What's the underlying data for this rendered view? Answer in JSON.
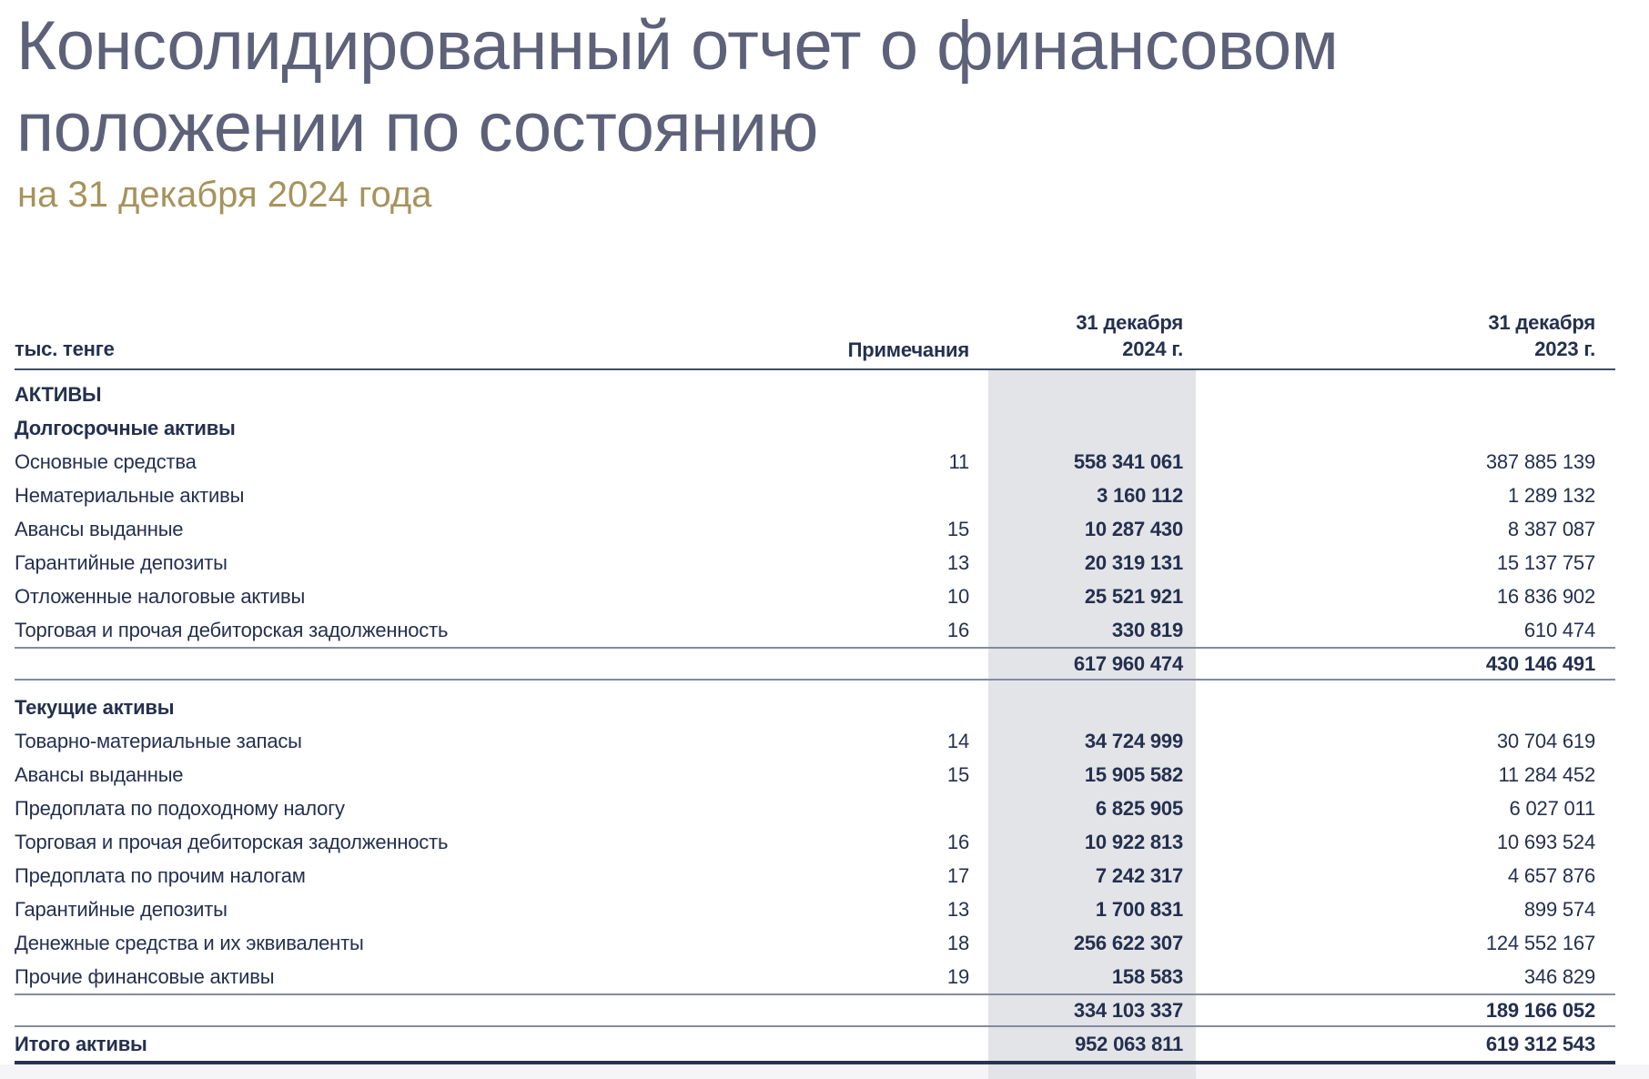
{
  "title": {
    "line1": "Консолидированный отчет о финансовом",
    "line2": "положении по состоянию",
    "subtitle": "на 31 декабря 2024 года"
  },
  "table": {
    "unit_label": "тыс. тенге",
    "columns": {
      "notes": "Примечания",
      "p2024_line1": "31 декабря",
      "p2024_line2": "2024 г.",
      "p2023_line1": "31 декабря",
      "p2023_line2": "2023 г."
    },
    "rows": [
      {
        "type": "section",
        "label": "АКТИВЫ"
      },
      {
        "type": "section",
        "label": "Долгосрочные активы"
      },
      {
        "type": "item",
        "label": "Основные средства",
        "note": "11",
        "v2024": "558 341 061",
        "v2023": "387 885 139"
      },
      {
        "type": "item",
        "label": "Нематериальные активы",
        "note": "",
        "v2024": "3 160 112",
        "v2023": "1 289 132"
      },
      {
        "type": "item",
        "label": "Авансы выданные",
        "note": "15",
        "v2024": "10 287 430",
        "v2023": "8 387 087"
      },
      {
        "type": "item",
        "label": "Гарантийные депозиты",
        "note": "13",
        "v2024": "20 319 131",
        "v2023": "15 137 757"
      },
      {
        "type": "item",
        "label": "Отложенные налоговые активы",
        "note": "10",
        "v2024": "25 521 921",
        "v2023": "16 836 902"
      },
      {
        "type": "item",
        "label": "Торговая и прочая дебиторская задолженность",
        "note": "16",
        "v2024": "330 819",
        "v2023": "610 474"
      },
      {
        "type": "subtotal",
        "label": "",
        "note": "",
        "v2024": "617 960 474",
        "v2023": "430 146 491"
      },
      {
        "type": "section",
        "label": "Текущие активы",
        "gap_before": true
      },
      {
        "type": "item",
        "label": "Товарно-материальные запасы",
        "note": "14",
        "v2024": "34 724 999",
        "v2023": "30 704 619"
      },
      {
        "type": "item",
        "label": "Авансы выданные",
        "note": "15",
        "v2024": "15 905 582",
        "v2023": "11 284 452"
      },
      {
        "type": "item",
        "label": "Предоплата по подоходному налогу",
        "note": "",
        "v2024": "6 825 905",
        "v2023": "6 027 011"
      },
      {
        "type": "item",
        "label": "Торговая и прочая дебиторская задолженность",
        "note": "16",
        "v2024": "10 922 813",
        "v2023": "10 693 524"
      },
      {
        "type": "item",
        "label": "Предоплата по прочим налогам",
        "note": "17",
        "v2024": "7 242 317",
        "v2023": "4 657 876"
      },
      {
        "type": "item",
        "label": "Гарантийные депозиты",
        "note": "13",
        "v2024": "1 700 831",
        "v2023": "899 574"
      },
      {
        "type": "item",
        "label": "Денежные средства и их эквиваленты",
        "note": "18",
        "v2024": "256 622 307",
        "v2023": "124 552 167"
      },
      {
        "type": "item",
        "label": "Прочие финансовые активы",
        "note": "19",
        "v2024": "158 583",
        "v2023": "346 829"
      },
      {
        "type": "subtotal",
        "label": "",
        "note": "",
        "v2024": "334 103 337",
        "v2023": "189 166 052"
      },
      {
        "type": "total",
        "label": "Итого активы",
        "note": "",
        "v2024": "952 063 811",
        "v2023": "619 312 543"
      }
    ]
  },
  "colors": {
    "title_color": "#5d6179",
    "subtitle_color": "#a6935c",
    "text_color": "#24304f",
    "band_color": "#e3e4e7",
    "rule_header": "#3f4c6b",
    "rule_sub": "#828ba0",
    "rule_total": "#293452",
    "strip_color": "#f5f5f7"
  }
}
